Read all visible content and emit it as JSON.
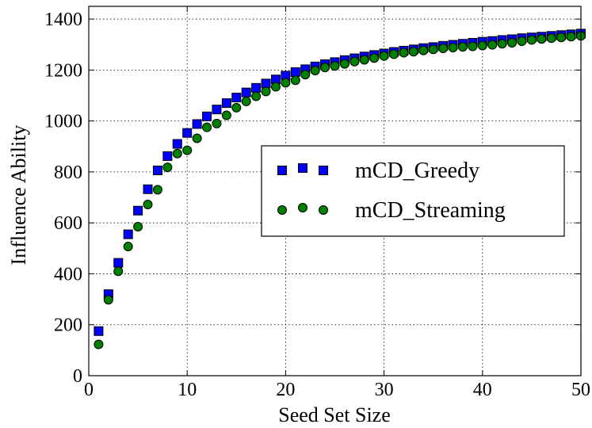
{
  "chart_data": {
    "type": "scatter",
    "title": "",
    "xlabel": "Seed Set Size",
    "ylabel": "Influence Ability",
    "xlim": [
      0,
      50
    ],
    "ylim": [
      0,
      1450
    ],
    "xticks": [
      0,
      10,
      20,
      30,
      40,
      50
    ],
    "yticks": [
      0,
      200,
      400,
      600,
      800,
      1000,
      1200,
      1400
    ],
    "grid": true,
    "legend_position": "center-right",
    "x": [
      1,
      2,
      3,
      4,
      5,
      6,
      7,
      8,
      9,
      10,
      11,
      12,
      13,
      14,
      15,
      16,
      17,
      18,
      19,
      20,
      21,
      22,
      23,
      24,
      25,
      26,
      27,
      28,
      29,
      30,
      31,
      32,
      33,
      34,
      35,
      36,
      37,
      38,
      39,
      40,
      41,
      42,
      43,
      44,
      45,
      46,
      47,
      48,
      49,
      50
    ],
    "series": [
      {
        "name": "mCD_Greedy",
        "marker": "square",
        "color": "#0000ff",
        "values": [
          175,
          320,
          443,
          555,
          648,
          732,
          806,
          862,
          910,
          953,
          988,
          1018,
          1045,
          1070,
          1092,
          1112,
          1130,
          1147,
          1163,
          1178,
          1192,
          1203,
          1214,
          1223,
          1231,
          1239,
          1246,
          1253,
          1259,
          1265,
          1271,
          1276,
          1281,
          1286,
          1290,
          1295,
          1299,
          1303,
          1307,
          1311,
          1314,
          1318,
          1321,
          1325,
          1328,
          1331,
          1334,
          1337,
          1340,
          1343
        ]
      },
      {
        "name": "mCD_Streaming",
        "marker": "circle",
        "color": "#007f00",
        "values": [
          123,
          298,
          410,
          507,
          585,
          672,
          730,
          818,
          872,
          885,
          932,
          975,
          990,
          1022,
          1052,
          1077,
          1097,
          1116,
          1134,
          1150,
          1160,
          1182,
          1198,
          1210,
          1216,
          1224,
          1233,
          1240,
          1247,
          1255,
          1262,
          1268,
          1272,
          1277,
          1281,
          1285,
          1288,
          1291,
          1293,
          1296,
          1299,
          1303,
          1307,
          1313,
          1318,
          1322,
          1325,
          1328,
          1331,
          1334
        ]
      }
    ]
  }
}
